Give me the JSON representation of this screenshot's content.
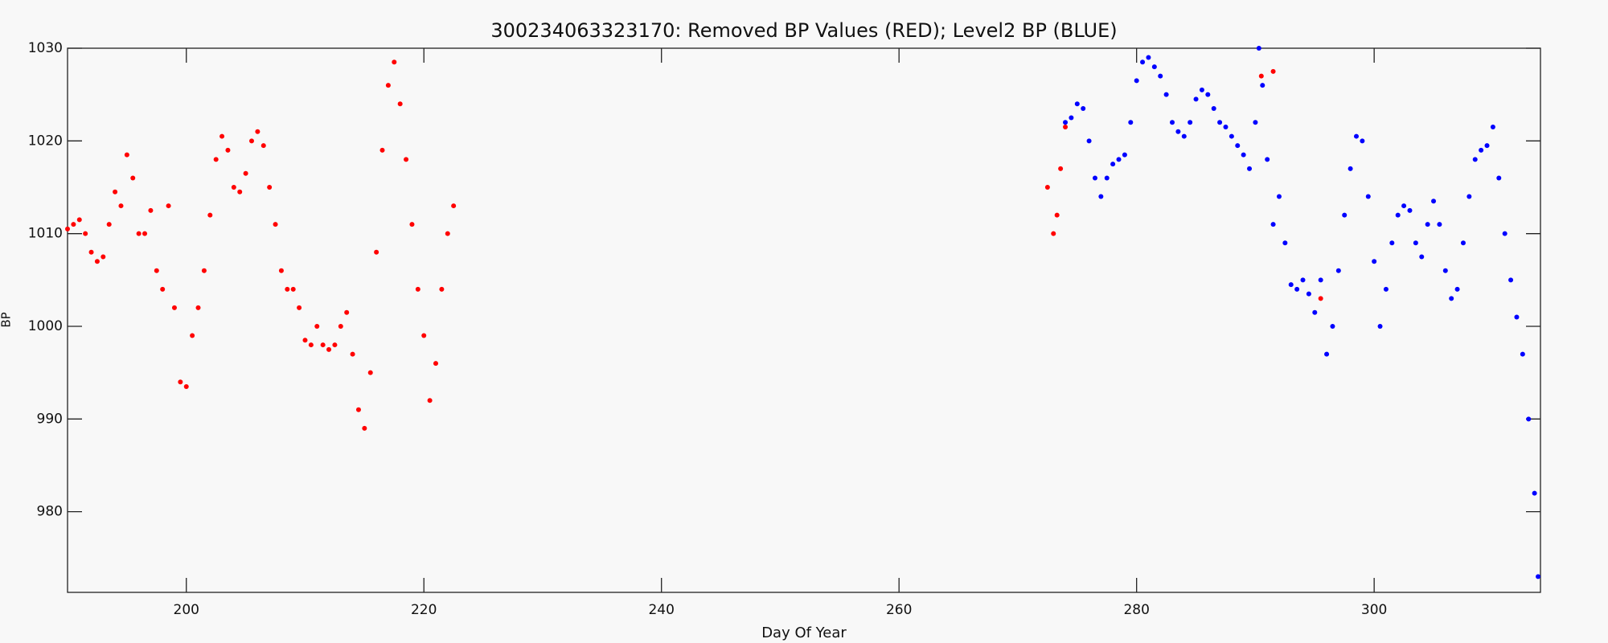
{
  "chart_data": {
    "type": "scatter",
    "title": "300234063323170: Removed BP Values (RED); Level2 BP (BLUE)",
    "x_label": "Day Of Year",
    "y_label": "BP",
    "xlim": [
      190,
      314
    ],
    "ylim": [
      971.3,
      1030
    ],
    "xticks": [
      200,
      220,
      240,
      260,
      280,
      300
    ],
    "yticks": [
      980,
      990,
      1000,
      1010,
      1020,
      1030
    ],
    "series": [
      {
        "color": "#ff0000",
        "x": [
          190,
          190.5,
          191,
          191.5,
          192,
          192.5,
          193,
          193.5,
          194,
          194.5,
          195,
          195.5,
          196,
          196.5,
          197,
          197.5,
          198,
          198.5,
          199,
          199.5,
          200,
          200.5,
          201,
          201.5,
          202,
          202.5,
          203,
          203.5,
          204,
          204.5,
          205,
          205.5,
          206,
          206.5,
          207,
          207.5,
          208,
          208.5,
          209,
          209.5,
          210,
          210.5,
          211,
          211.5,
          212,
          212.5,
          213,
          213.5,
          214,
          214.5,
          215,
          215.5,
          216,
          216.5,
          217,
          217.5,
          218,
          218.5,
          219,
          219.5,
          220,
          220.5,
          221,
          221.5,
          222,
          222.5,
          272.5,
          273,
          273.3,
          273.6,
          274,
          290.5,
          291.5,
          295.5
        ],
        "values": [
          1010.5,
          1011,
          1011.5,
          1010,
          1008,
          1007,
          1007.5,
          1011,
          1014.5,
          1013,
          1018.5,
          1016,
          1010,
          1010,
          1012.5,
          1006,
          1004,
          1013,
          1002,
          994,
          993.5,
          999,
          1002,
          1006,
          1012,
          1018,
          1020.5,
          1019,
          1015,
          1014.5,
          1016.5,
          1020,
          1021,
          1019.5,
          1015,
          1011,
          1006,
          1004,
          1004,
          1002,
          998.5,
          998,
          1000,
          998,
          997.5,
          998,
          1000,
          1001.5,
          997,
          991,
          989,
          995,
          1008,
          1019,
          1026,
          1028.5,
          1024,
          1018,
          1011,
          1004,
          999,
          992,
          996,
          1004,
          1010,
          1013,
          1015,
          1010,
          1012,
          1017,
          1021.5,
          1027,
          1027.5,
          1003
        ]
      },
      {
        "color": "#0000ff",
        "x": [
          274,
          274.5,
          275,
          275.5,
          276,
          276.5,
          277,
          277.5,
          278,
          278.5,
          279,
          279.5,
          280,
          280.5,
          281,
          281.5,
          282,
          282.5,
          283,
          283.5,
          284,
          284.5,
          285,
          285.5,
          286,
          286.5,
          287,
          287.5,
          288,
          288.5,
          289,
          289.5,
          290,
          290.3,
          290.6,
          291,
          291.5,
          292,
          292.5,
          293,
          293.5,
          294,
          294.5,
          295,
          295.5,
          296,
          296.5,
          297,
          297.5,
          298,
          298.5,
          299,
          299.5,
          300,
          300.5,
          301,
          301.5,
          302,
          302.5,
          303,
          303.5,
          304,
          304.5,
          305,
          305.5,
          306,
          306.5,
          307,
          307.5,
          308,
          308.5,
          309,
          309.5,
          310,
          310.5,
          311,
          311.5,
          312,
          312.5,
          313,
          313.5,
          313.8
        ],
        "values": [
          1022,
          1022.5,
          1024,
          1023.5,
          1020,
          1016,
          1014,
          1016,
          1017.5,
          1018,
          1018.5,
          1022,
          1026.5,
          1028.5,
          1029,
          1028,
          1027,
          1025,
          1022,
          1021,
          1020.5,
          1022,
          1024.5,
          1025.5,
          1025,
          1023.5,
          1022,
          1021.5,
          1020.5,
          1019.5,
          1018.5,
          1017,
          1022,
          1030,
          1026,
          1018,
          1011,
          1014,
          1009,
          1004.5,
          1004,
          1005,
          1003.5,
          1001.5,
          1005,
          997,
          1000,
          1006,
          1012,
          1017,
          1020.5,
          1020,
          1014,
          1007,
          1000,
          1004,
          1009,
          1012,
          1013,
          1012.5,
          1009,
          1007.5,
          1011,
          1013.5,
          1011,
          1006,
          1003,
          1004,
          1009,
          1014,
          1018,
          1019,
          1019.5,
          1021.5,
          1016,
          1010,
          1005,
          1001,
          997,
          990,
          982,
          973
        ]
      }
    ]
  }
}
